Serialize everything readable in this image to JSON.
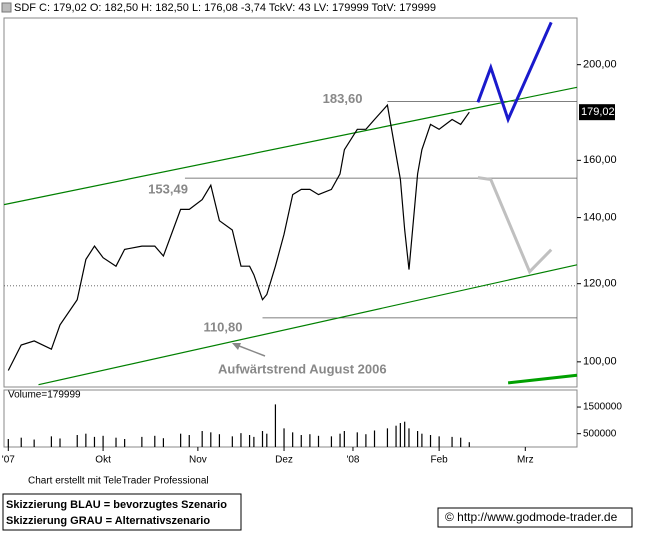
{
  "chart_data": {
    "type": "line",
    "header": "SDF C: 179,02 O: 182,50 H: 182,50 L: 176,08 -3,74 TckV: 43 LV: 179999 TotV: 179999",
    "x": [
      1,
      4,
      7,
      11,
      13,
      17,
      19,
      21,
      23,
      26,
      28,
      32,
      35,
      37,
      41,
      43,
      46,
      48,
      50,
      53,
      55,
      57,
      58,
      60,
      61,
      63,
      65,
      67,
      69,
      71,
      73,
      76,
      78,
      79,
      82,
      84,
      86,
      89,
      91,
      92,
      93,
      94,
      96,
      97,
      99,
      101,
      104,
      106,
      108
    ],
    "values": [
      98,
      104,
      105,
      103,
      109,
      115.6,
      127,
      131,
      127.5,
      125,
      130,
      131,
      131,
      128,
      142.7,
      142.7,
      146,
      151,
      139,
      136,
      125,
      125,
      122.5,
      115.6,
      117,
      125,
      134.6,
      147.7,
      149.5,
      149.5,
      147.7,
      149.5,
      155,
      164,
      172,
      172,
      176,
      182,
      162,
      153,
      136,
      124,
      155,
      164,
      174,
      172,
      176,
      174,
      179.02
    ],
    "color": "#000000",
    "xlim": [
      0,
      133
    ],
    "xticks": [
      {
        "value": 1,
        "label": "'07"
      },
      {
        "value": 23,
        "label": "Okt"
      },
      {
        "value": 45,
        "label": "Nov"
      },
      {
        "value": 65,
        "label": "Dez"
      },
      {
        "value": 81,
        "label": "'08"
      },
      {
        "value": 101,
        "label": "Feb"
      },
      {
        "value": 121,
        "label": "Mrz"
      }
    ],
    "ylim": [
      94.3,
      223
    ],
    "log_scale": true,
    "yticks": [
      {
        "value": 100,
        "label": "100,00"
      },
      {
        "value": 120,
        "label": "120,00"
      },
      {
        "value": 140,
        "label": "140,00"
      },
      {
        "value": 160,
        "label": "160,00"
      },
      {
        "value": 200,
        "label": "200,00"
      }
    ],
    "price_tag": {
      "value": 179.02,
      "label": "179,02"
    },
    "levels": [
      {
        "value": 183.6,
        "label": "183,60",
        "x0": 89
      },
      {
        "value": 153.49,
        "label": "153,49",
        "x0": 42
      },
      {
        "value": 110.8,
        "label": "110,80",
        "x0": 60
      },
      {
        "value": 119.4,
        "x0": 0
      }
    ],
    "trendlines": [
      {
        "color": "#008000",
        "x": [
          0,
          133
        ],
        "values": [
          144.3,
          189.7
        ]
      },
      {
        "color": "#008000",
        "x": [
          8,
          133
        ],
        "values": [
          94.8,
          125.4
        ]
      },
      {
        "color": "#00a000",
        "x": [
          117,
          133
        ],
        "values": [
          95.2,
          96.9
        ]
      },
      {
        "color": "#1a1acc",
        "x": [
          110,
          113,
          117,
          127
        ],
        "values": [
          183.2,
          198.7,
          176,
          220.7
        ]
      },
      {
        "color": "#c0c0c0",
        "x": [
          110,
          113,
          122,
          127
        ],
        "values": [
          153.7,
          153,
          123.4,
          129.9
        ]
      }
    ],
    "trend_label": "Aufwärtstrend August 2006",
    "volume": {
      "label": "Volume=179999",
      "values": [
        300000,
        350000,
        280000,
        400000,
        320000,
        450000,
        500000,
        380000,
        420000,
        350000,
        300000,
        380000,
        420000,
        330000,
        500000,
        450000,
        600000,
        550000,
        480000,
        400000,
        520000,
        450000,
        380000,
        600000,
        500000,
        1600000,
        700000,
        550000,
        450000,
        480000,
        420000,
        400000,
        500000,
        600000,
        550000,
        480000,
        620000,
        700000,
        800000,
        900000,
        950000,
        700000,
        600000,
        500000,
        450000,
        400000,
        380000,
        350000,
        179999
      ],
      "color": "#000000",
      "ylim": [
        0,
        2140000
      ],
      "yticks": [
        500000,
        1500000
      ]
    },
    "footer": "Chart erstellt mit TeleTrader Professional",
    "legend_lines": [
      "Skizzierung BLAU = bevorzugtes Szenario",
      "Skizzierung GRAU = Alternativszenario"
    ],
    "copyright": "© http://www.godmode-trader.de"
  }
}
